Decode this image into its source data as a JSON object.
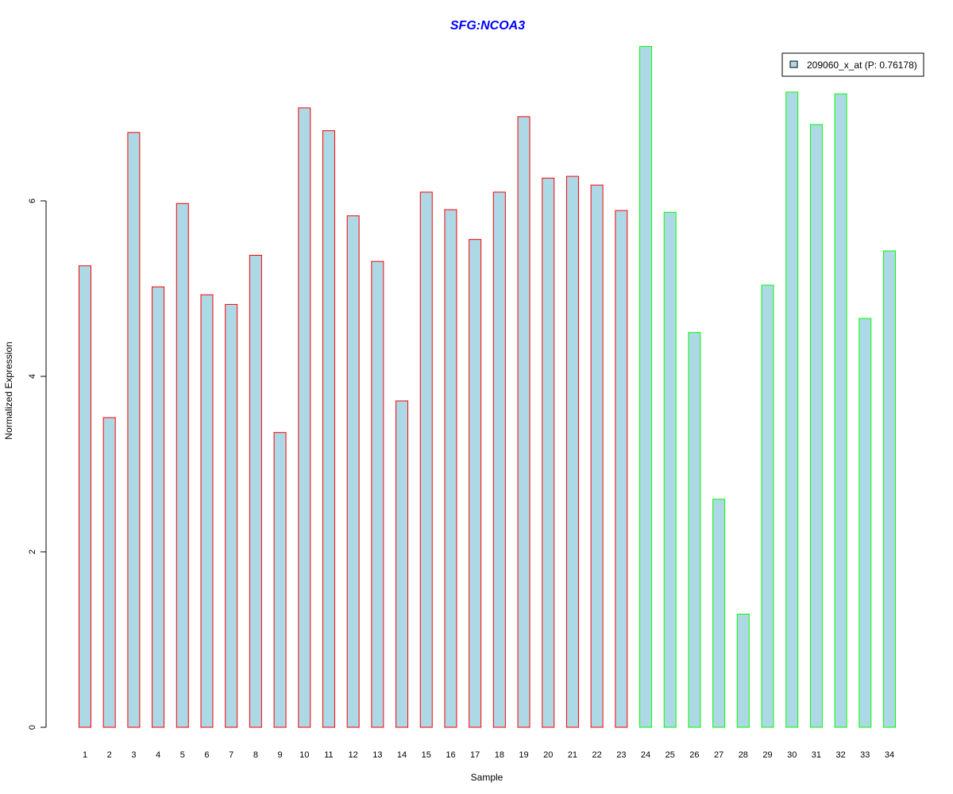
{
  "chart_data": {
    "type": "bar",
    "title": "SFG:NCOA3",
    "xlabel": "Sample",
    "ylabel": "Normalized Expression",
    "ylim": [
      0,
      7.8
    ],
    "yticks": [
      0,
      2,
      4,
      6
    ],
    "categories": [
      "1",
      "2",
      "3",
      "4",
      "5",
      "6",
      "7",
      "8",
      "9",
      "10",
      "11",
      "12",
      "13",
      "14",
      "15",
      "16",
      "17",
      "18",
      "19",
      "20",
      "21",
      "22",
      "23",
      "24",
      "25",
      "26",
      "27",
      "28",
      "29",
      "30",
      "31",
      "32",
      "33",
      "34"
    ],
    "values": [
      5.26,
      3.53,
      6.78,
      5.02,
      5.97,
      4.93,
      4.82,
      5.38,
      3.36,
      7.06,
      6.8,
      5.83,
      5.31,
      3.72,
      6.1,
      5.9,
      5.56,
      6.1,
      6.96,
      6.26,
      6.28,
      6.18,
      5.89,
      7.76,
      5.87,
      4.5,
      2.6,
      1.29,
      5.04,
      7.24,
      6.87,
      7.22,
      4.66,
      5.43
    ],
    "groups": [
      "red",
      "red",
      "red",
      "red",
      "red",
      "red",
      "red",
      "red",
      "red",
      "red",
      "red",
      "red",
      "red",
      "red",
      "red",
      "red",
      "red",
      "red",
      "red",
      "red",
      "red",
      "red",
      "red",
      "green",
      "green",
      "green",
      "green",
      "green",
      "green",
      "green",
      "green",
      "green",
      "green",
      "green"
    ],
    "fill_color": "#ADD8E6",
    "group_colors": {
      "red": "#FF0000",
      "green": "#00FF00"
    },
    "title_color": "#0000FF",
    "legend": {
      "label": "209060_x_at (P: 0.76178)",
      "placement": "top-right"
    }
  }
}
